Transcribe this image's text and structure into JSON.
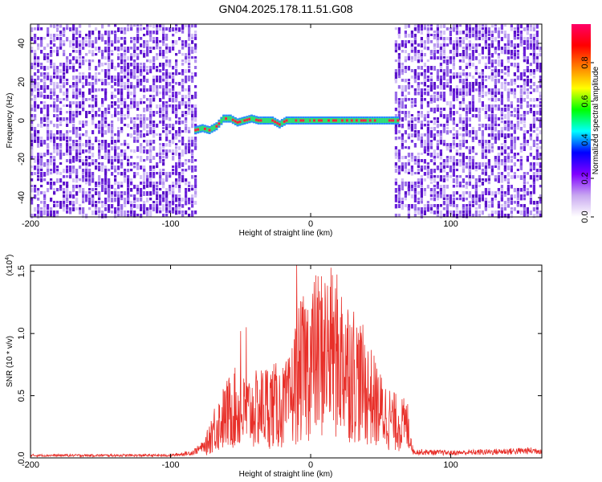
{
  "title": "GN04.2025.178.11.51.G08",
  "chart_data": [
    {
      "type": "heatmap",
      "xlabel": "Height of straight line (km)",
      "ylabel": "Frequency (Hz)",
      "xlim": [
        -200,
        165
      ],
      "ylim": [
        -50,
        50
      ],
      "x_ticks": [
        "-200",
        "-100",
        "0",
        "100"
      ],
      "y_ticks": [
        "-40",
        "-20",
        "0",
        "20",
        "40"
      ],
      "colorbar": {
        "label": "Normalized spectral amplitude",
        "range": [
          0.0,
          1.0
        ],
        "ticks": [
          "0.0",
          "0.2",
          "0.4",
          "0.6",
          "0.8"
        ],
        "colors": [
          "#ffffff",
          "#c8a8f0",
          "#8000ff",
          "#0000ff",
          "#00ffff",
          "#00ff00",
          "#ffff00",
          "#ff8000",
          "#ff0000",
          "#ff0066"
        ]
      },
      "noise_regions": [
        [
          -200,
          -83
        ],
        [
          60,
          165
        ]
      ],
      "signal_track": {
        "x": [
          -83,
          -78,
          -73,
          -68,
          -63,
          -58,
          -53,
          -48,
          -43,
          -38,
          -33,
          -28,
          -23,
          -18,
          -13,
          0,
          20,
          40,
          58,
          63
        ],
        "freq": [
          -5,
          -4,
          -5,
          -3,
          1,
          1,
          -1,
          0,
          1,
          0,
          0,
          0,
          -2,
          0,
          0,
          0,
          0,
          0,
          0,
          0
        ]
      },
      "grid": false
    },
    {
      "type": "line",
      "xlabel": "Height of straight line (km)",
      "ylabel": "SNR (10 * v/v)",
      "y_scale_label": "(x10",
      "y_scale_exp": "4",
      "y_scale_close": ")",
      "xlim": [
        -200,
        165
      ],
      "ylim": [
        0,
        1.55
      ],
      "x_ticks": [
        "-200",
        "-100",
        "0",
        "100"
      ],
      "y_ticks": [
        "0.0",
        "0.5",
        "1.0",
        "1.5"
      ],
      "color": "#e8302a",
      "envelope": {
        "x": [
          -200,
          -100,
          -85,
          -75,
          -70,
          -55,
          -50,
          -40,
          -30,
          -20,
          -15,
          -10,
          0,
          10,
          20,
          30,
          40,
          50,
          60,
          70,
          73,
          100,
          165
        ],
        "y": [
          0.02,
          0.02,
          0.04,
          0.1,
          0.25,
          0.45,
          0.4,
          0.42,
          0.48,
          0.45,
          0.5,
          0.72,
          0.88,
          0.95,
          0.9,
          0.78,
          0.6,
          0.42,
          0.32,
          0.28,
          0.05,
          0.04,
          0.06
        ]
      },
      "peaks": [
        {
          "x": -10,
          "y": 1.55
        },
        {
          "x": -50,
          "y": 1.02
        },
        {
          "x": -46,
          "y": 1.05
        },
        {
          "x": 15,
          "y": 1.08
        },
        {
          "x": 25,
          "y": 1.07
        }
      ],
      "grid": false
    }
  ]
}
